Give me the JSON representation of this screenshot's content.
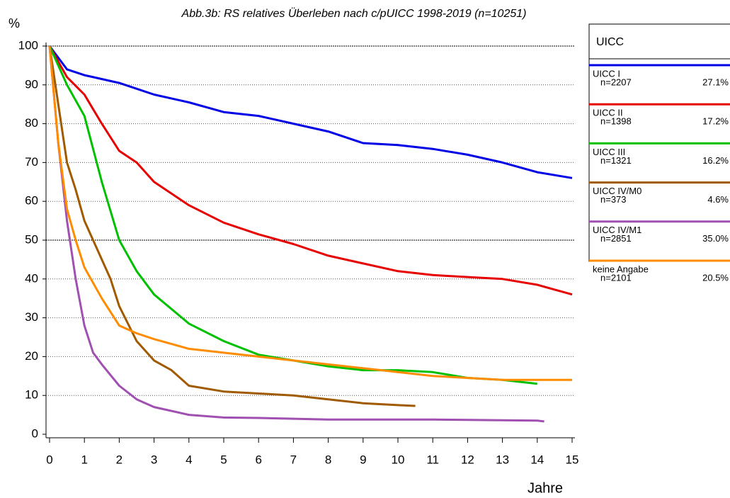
{
  "chart_data": {
    "type": "line",
    "title": "Abb.3b: RS relatives Überleben nach c/pUICC 1998-2019 (n=10251)",
    "y_label": "%",
    "x_label": "Jahre",
    "legend_title": "UICC",
    "xlim": [
      0,
      15
    ],
    "xticks": [
      0,
      1,
      2,
      3,
      4,
      5,
      6,
      7,
      8,
      9,
      10,
      11,
      12,
      13,
      14,
      15
    ],
    "ylim": [
      0,
      100
    ],
    "yticks": [
      0,
      10,
      20,
      30,
      40,
      50,
      60,
      70,
      80,
      90,
      100
    ],
    "grid": true,
    "series": [
      {
        "name": "UICC I",
        "n_text": "n=2207",
        "share_text": "27.1%",
        "color": "#0000e6",
        "x": [
          0,
          0.5,
          1,
          2,
          3,
          4,
          5,
          6,
          7,
          8,
          9,
          10,
          11,
          12,
          13,
          14,
          15
        ],
        "values": [
          100,
          94,
          92.5,
          90.5,
          87.5,
          85.5,
          83,
          82,
          80,
          78,
          75,
          74.5,
          73.5,
          72,
          70,
          67.5,
          66
        ]
      },
      {
        "name": "UICC II",
        "n_text": "n=1398",
        "share_text": "17.2%",
        "color": "#e60000",
        "x": [
          0,
          0.5,
          1,
          1.5,
          2,
          2.5,
          3,
          4,
          5,
          6,
          7,
          8,
          9,
          10,
          11,
          12,
          13,
          14,
          15
        ],
        "values": [
          100,
          92,
          87.5,
          80,
          73,
          70,
          65,
          59,
          54.5,
          51.5,
          49,
          46,
          44,
          42,
          41,
          40.5,
          40,
          38.5,
          36
        ]
      },
      {
        "name": "UICC III",
        "n_text": "n=1321",
        "share_text": "16.2%",
        "color": "#00c000",
        "x": [
          0,
          0.5,
          1,
          1.5,
          2,
          2.5,
          3,
          4,
          5,
          6,
          7,
          8,
          9,
          10,
          11,
          12,
          13,
          14
        ],
        "values": [
          100,
          90,
          82,
          65,
          50,
          42,
          36,
          28.5,
          24,
          20.5,
          19,
          17.5,
          16.5,
          16.5,
          16,
          14.5,
          14,
          13
        ]
      },
      {
        "name": "UICC IV/M0",
        "n_text": "n=373",
        "share_text": "4.6%",
        "color": "#a05a00",
        "x": [
          0,
          0.25,
          0.5,
          0.75,
          1,
          1.25,
          1.5,
          1.75,
          2,
          2.5,
          3,
          3.5,
          4,
          5,
          6,
          7,
          8,
          9,
          10,
          10.5
        ],
        "values": [
          100,
          85,
          70,
          63,
          55,
          50,
          45,
          40,
          33,
          24,
          19,
          16.5,
          12.5,
          11,
          10.5,
          10,
          9,
          8,
          7.5,
          7.3
        ]
      },
      {
        "name": "UICC IV/M1",
        "n_text": "n=2851",
        "share_text": "35.0%",
        "color": "#a050b0",
        "x": [
          0,
          0.25,
          0.5,
          0.75,
          1,
          1.25,
          1.5,
          2,
          2.5,
          3,
          4,
          5,
          6,
          7,
          8,
          10,
          11,
          12,
          14,
          14.2
        ],
        "values": [
          100,
          75,
          55,
          40,
          28,
          21,
          18,
          12.5,
          9,
          7,
          5,
          4.3,
          4.2,
          4,
          3.8,
          3.8,
          3.8,
          3.7,
          3.5,
          3.3
        ]
      },
      {
        "name": "keine Angabe",
        "n_text": "n=2101",
        "share_text": "20.5%",
        "color": "#ff8c00",
        "x": [
          0,
          0.25,
          0.5,
          0.75,
          1,
          1.5,
          2,
          2.5,
          3,
          4,
          5,
          6,
          7,
          8,
          9,
          10,
          11,
          12,
          13,
          14,
          15
        ],
        "values": [
          100,
          75,
          58,
          50,
          43,
          35,
          28,
          26,
          24.5,
          22,
          21,
          20,
          19,
          18,
          17,
          16,
          15,
          14.5,
          14,
          14,
          14
        ]
      }
    ]
  }
}
